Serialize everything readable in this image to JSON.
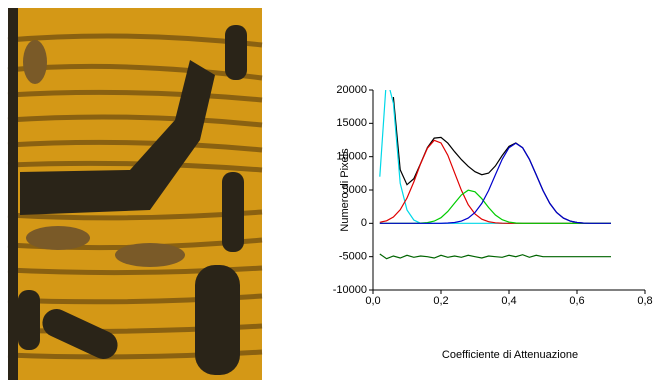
{
  "chart_data": {
    "type": "line",
    "x_label": "Coefficiente di Attenuazione",
    "y_label": "Numero di Pixels",
    "x": [
      0.02,
      0.04,
      0.06,
      0.08,
      0.1,
      0.12,
      0.14,
      0.16,
      0.18,
      0.2,
      0.22,
      0.24,
      0.26,
      0.28,
      0.3,
      0.32,
      0.34,
      0.36,
      0.38,
      0.4,
      0.42,
      0.44,
      0.46,
      0.48,
      0.5,
      0.52,
      0.54,
      0.56,
      0.58,
      0.6,
      0.62,
      0.64,
      0.66,
      0.68,
      0.7
    ],
    "series": [
      {
        "color": "#000000",
        "values": [
          null,
          null,
          18950,
          8030,
          5800,
          6700,
          8970,
          11375,
          12780,
          12890,
          12040,
          10740,
          9560,
          8560,
          7750,
          7300,
          7540,
          8610,
          10170,
          11540,
          12050,
          11350,
          9610,
          7280,
          4930,
          2990,
          1620,
          790,
          340,
          130,
          40,
          0,
          0,
          0,
          0
        ]
      },
      {
        "color": "#00d8e8",
        "values": [
          7000,
          22000,
          18000,
          6000,
          2000,
          500,
          0,
          0,
          0,
          0,
          0,
          0,
          0,
          0,
          0,
          0,
          0,
          0,
          0,
          0,
          0,
          0,
          0,
          0,
          0,
          0,
          0,
          0,
          0,
          0,
          0,
          0,
          0,
          0,
          0
        ]
      },
      {
        "color": "#e00000",
        "values": [
          150,
          385,
          950,
          2030,
          3800,
          6200,
          8940,
          11270,
          12450,
          12050,
          10220,
          7580,
          4950,
          2800,
          1400,
          620,
          240,
          80,
          20,
          0,
          0,
          0,
          0,
          0,
          0,
          0,
          0,
          0,
          0,
          0,
          0,
          0,
          0,
          0,
          0
        ]
      },
      {
        "color": "#00cc00",
        "values": [
          0,
          0,
          0,
          0,
          0,
          0,
          30,
          105,
          330,
          840,
          1770,
          3030,
          4270,
          4970,
          4730,
          3690,
          2370,
          1250,
          540,
          190,
          50,
          0,
          0,
          0,
          0,
          0,
          0,
          0,
          0,
          0,
          0,
          0,
          0,
          0,
          0
        ]
      },
      {
        "color": "#0000cc",
        "values": [
          0,
          0,
          0,
          0,
          0,
          0,
          0,
          0,
          0,
          0,
          50,
          130,
          340,
          790,
          1620,
          2990,
          4930,
          7280,
          9610,
          11350,
          12000,
          11350,
          9610,
          7280,
          4930,
          2990,
          1620,
          790,
          340,
          130,
          40,
          0,
          0,
          0,
          0
        ]
      },
      {
        "color": "#006400",
        "values": [
          -4600,
          -5300,
          -4900,
          -5200,
          -4800,
          -5100,
          -4900,
          -5000,
          -5200,
          -4800,
          -5100,
          -4900,
          -5100,
          -4800,
          -5000,
          -5200,
          -4900,
          -5000,
          -5100,
          -4800,
          -5000,
          -4700,
          -5100,
          -4800,
          -5000,
          -5000,
          -5000,
          -5000,
          -5000,
          -5000,
          -5000,
          -5000,
          -5000,
          -5000,
          -5000
        ]
      }
    ],
    "xlim": [
      0,
      0.8
    ],
    "xticks": [
      {
        "value": 0,
        "label": "0,0"
      },
      {
        "value": 0.2,
        "label": "0,2"
      },
      {
        "value": 0.4,
        "label": "0,4"
      },
      {
        "value": 0.6,
        "label": "0,6"
      },
      {
        "value": 0.8,
        "label": "0,8"
      }
    ],
    "ylim": [
      -10000,
      20000
    ],
    "yticks": [
      -10000,
      -5000,
      0,
      5000,
      10000,
      15000,
      20000
    ],
    "grid": false
  }
}
